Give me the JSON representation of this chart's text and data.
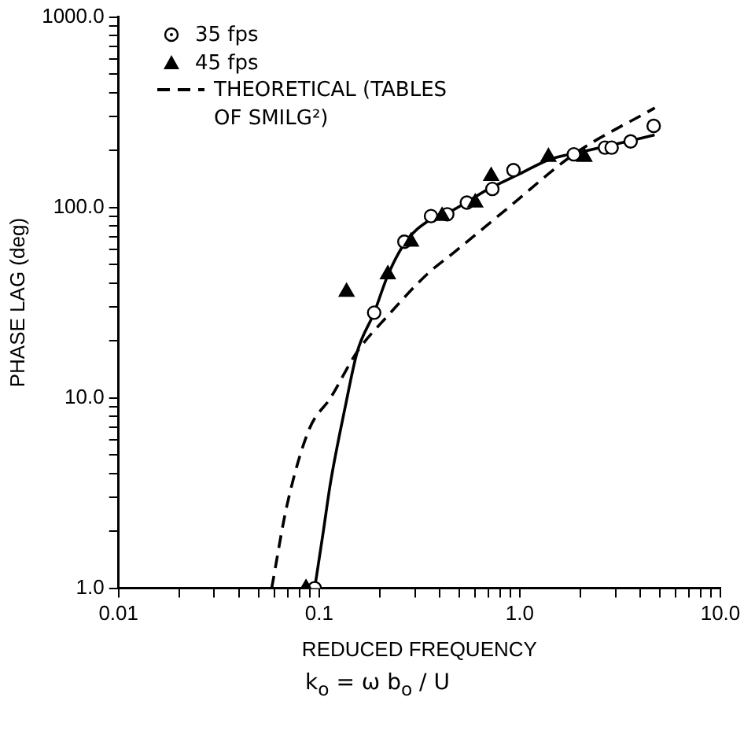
{
  "chart_data": {
    "type": "scatter",
    "xlabel": "REDUCED FREQUENCY",
    "ylabel": "PHASE LAG (deg)",
    "log": "xy",
    "grid": false,
    "legend": "top left",
    "xlim": [
      0.01,
      10
    ],
    "ylim": [
      1,
      1000
    ],
    "xticks": [
      0.01,
      {
        "value": 0.02,
        "label": null
      },
      {
        "value": 0.03,
        "label": null
      },
      {
        "value": 0.04,
        "label": null
      },
      {
        "value": 0.05,
        "label": null
      },
      {
        "value": 0.06,
        "label": null
      },
      {
        "value": 0.07,
        "label": null
      },
      {
        "value": 0.08,
        "label": null
      },
      {
        "value": 0.09,
        "label": null
      },
      0.1,
      {
        "value": 0.2,
        "label": null
      },
      {
        "value": 0.3,
        "label": null
      },
      {
        "value": 0.4,
        "label": null
      },
      {
        "value": 0.5,
        "label": null
      },
      {
        "value": 0.6,
        "label": null
      },
      {
        "value": 0.7,
        "label": null
      },
      {
        "value": 0.8,
        "label": null
      },
      {
        "value": 0.9,
        "label": null
      },
      {
        "value": 1,
        "label": "1.0"
      },
      {
        "value": 2,
        "label": null
      },
      {
        "value": 3,
        "label": null
      },
      {
        "value": 4,
        "label": null
      },
      {
        "value": 5,
        "label": null
      },
      {
        "value": 6,
        "label": null
      },
      {
        "value": 7,
        "label": null
      },
      {
        "value": 8,
        "label": null
      },
      {
        "value": 9,
        "label": null
      },
      {
        "value": 10,
        "label": "10.0"
      }
    ],
    "yticks": [
      {
        "value": 1,
        "label": "1.0"
      },
      {
        "value": 2,
        "label": null
      },
      {
        "value": 3,
        "label": null
      },
      {
        "value": 4,
        "label": null
      },
      {
        "value": 5,
        "label": null
      },
      {
        "value": 6,
        "label": null
      },
      {
        "value": 7,
        "label": null
      },
      {
        "value": 8,
        "label": null
      },
      {
        "value": 9,
        "label": null
      },
      {
        "value": 10,
        "label": "10.0"
      },
      {
        "value": 20,
        "label": null
      },
      {
        "value": 30,
        "label": null
      },
      {
        "value": 40,
        "label": null
      },
      {
        "value": 50,
        "label": null
      },
      {
        "value": 60,
        "label": null
      },
      {
        "value": 70,
        "label": null
      },
      {
        "value": 80,
        "label": null
      },
      {
        "value": 90,
        "label": null
      },
      {
        "value": 100,
        "label": "100.0"
      },
      {
        "value": 200,
        "label": null
      },
      {
        "value": 300,
        "label": null
      },
      {
        "value": 400,
        "label": null
      },
      {
        "value": 500,
        "label": null
      },
      {
        "value": 600,
        "label": null
      },
      {
        "value": 700,
        "label": null
      },
      {
        "value": 800,
        "label": null
      },
      {
        "value": 900,
        "label": null
      },
      {
        "value": 1000,
        "label": "1000.0"
      }
    ],
    "annotations": [
      "k$_{o}$ = ω b$_{o}$ / U"
    ],
    "series": [
      {
        "name": "35 fps",
        "marker": "circle",
        "color": "#000000",
        "x": [
          0.095,
          0.188,
          0.266,
          0.361,
          0.435,
          0.545,
          0.73,
          0.93,
          1.86,
          2.66,
          2.87,
          3.57,
          4.65
        ],
        "values": [
          1,
          28,
          66,
          90,
          92,
          106,
          125,
          157,
          190,
          206,
          206,
          222,
          268
        ]
      },
      {
        "name": "45 fps",
        "marker": "triangle",
        "color": "#000000",
        "x": [
          0.086,
          0.137,
          0.22,
          0.287,
          0.41,
          0.6,
          0.72,
          1.39,
          2.1
        ],
        "values": [
          1,
          36,
          44.5,
          66,
          90,
          106,
          146,
          184,
          184
        ]
      },
      {
        "name": "THEORETICAL (TABLES OF SMILG²)",
        "type": "line",
        "line_style": "dashed",
        "marker": "none",
        "color": "#000000",
        "x": [
          0.058,
          0.069,
          0.089,
          0.114,
          0.155,
          0.22,
          0.347,
          0.47,
          0.88,
          1.86,
          4.71
        ],
        "values": [
          1,
          2.7,
          6.8,
          10,
          17.5,
          27,
          44.8,
          58,
          100,
          190,
          333
        ]
      },
      {
        "type": "line",
        "line_style": "solid",
        "marker": "none",
        "color": "#000000",
        "x": [
          0.095,
          0.105,
          0.114,
          0.135,
          0.155,
          0.188,
          0.22,
          0.27,
          0.35,
          0.45,
          0.7,
          1,
          1.4,
          2,
          3,
          4.7
        ],
        "values": [
          1,
          2,
          3.6,
          9,
          17.5,
          28,
          44,
          66,
          85,
          95,
          125,
          150,
          178,
          195,
          215,
          240
        ]
      }
    ]
  }
}
